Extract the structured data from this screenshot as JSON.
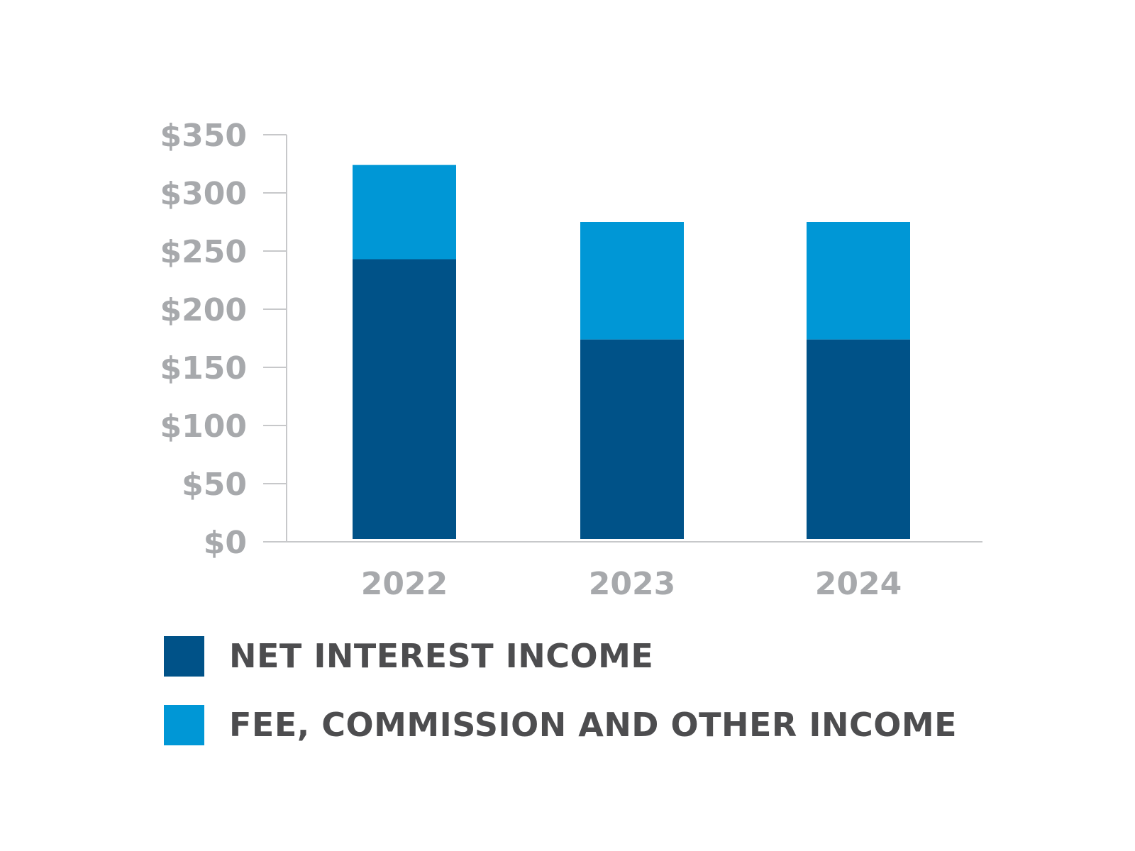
{
  "chart_data": {
    "type": "bar",
    "stacked": true,
    "categories": [
      "2022",
      "2023",
      "2024"
    ],
    "series": [
      {
        "name": "NET INTEREST INCOME",
        "color": "#005288",
        "values": [
          243,
          174,
          174
        ]
      },
      {
        "name": "FEE, COMMISSION AND OTHER INCOME",
        "color": "#0097d6",
        "values": [
          81,
          101,
          101
        ]
      }
    ],
    "ylim": [
      0,
      350
    ],
    "yticks": [
      0,
      50,
      100,
      150,
      200,
      250,
      300,
      350
    ],
    "ytick_labels": [
      "$0",
      "$50",
      "$100",
      "$150",
      "$200",
      "$250",
      "$300",
      "$350"
    ],
    "xlabel": "",
    "ylabel": "",
    "title": "",
    "grid": false,
    "legend_position": "bottom"
  },
  "colors": {
    "axis": "#c7c8ca",
    "tick_text": "#a7a9ac",
    "legend_text": "#4d4d4f"
  }
}
